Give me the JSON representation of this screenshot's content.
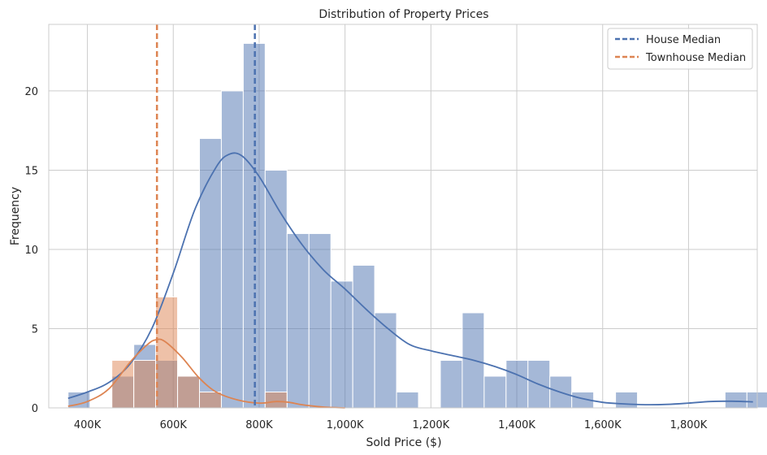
{
  "chart_data": {
    "type": "histogram",
    "title": "Distribution of Property Prices",
    "xlabel": "Sold Price ($)",
    "ylabel": "Frequency",
    "xlim": [
      310000,
      1960000
    ],
    "ylim": [
      0,
      24.2
    ],
    "xticks": [
      400000,
      600000,
      800000,
      1000000,
      1200000,
      1400000,
      1600000,
      1800000
    ],
    "xtick_labels": [
      "400K",
      "600K",
      "800K",
      "1,000K",
      "1,200K",
      "1,400K",
      "1,600K",
      "1,800K"
    ],
    "yticks": [
      0,
      5,
      10,
      15,
      20
    ],
    "ytick_labels": [
      "0",
      "5",
      "10",
      "15",
      "20"
    ],
    "grid": true,
    "legend_position": "top-right",
    "series": [
      {
        "name": "House",
        "color": "#4c72b0",
        "bins": [
          {
            "x0": 355000,
            "x1": 406000,
            "count": 1
          },
          {
            "x0": 457000,
            "x1": 508000,
            "count": 2
          },
          {
            "x0": 508000,
            "x1": 559000,
            "count": 4
          },
          {
            "x0": 559000,
            "x1": 610000,
            "count": 3
          },
          {
            "x0": 610000,
            "x1": 661000,
            "count": 2
          },
          {
            "x0": 661000,
            "x1": 712000,
            "count": 17
          },
          {
            "x0": 712000,
            "x1": 763000,
            "count": 20
          },
          {
            "x0": 763000,
            "x1": 814000,
            "count": 23
          },
          {
            "x0": 814000,
            "x1": 865000,
            "count": 15
          },
          {
            "x0": 865000,
            "x1": 916000,
            "count": 11
          },
          {
            "x0": 916000,
            "x1": 967000,
            "count": 11
          },
          {
            "x0": 967000,
            "x1": 1018000,
            "count": 8
          },
          {
            "x0": 1018000,
            "x1": 1069000,
            "count": 9
          },
          {
            "x0": 1069000,
            "x1": 1120000,
            "count": 6
          },
          {
            "x0": 1120000,
            "x1": 1171000,
            "count": 1
          },
          {
            "x0": 1222000,
            "x1": 1273000,
            "count": 3
          },
          {
            "x0": 1273000,
            "x1": 1324000,
            "count": 6
          },
          {
            "x0": 1324000,
            "x1": 1375000,
            "count": 2
          },
          {
            "x0": 1375000,
            "x1": 1426000,
            "count": 3
          },
          {
            "x0": 1426000,
            "x1": 1477000,
            "count": 3
          },
          {
            "x0": 1477000,
            "x1": 1528000,
            "count": 2
          },
          {
            "x0": 1528000,
            "x1": 1579000,
            "count": 1
          },
          {
            "x0": 1630000,
            "x1": 1681000,
            "count": 1
          },
          {
            "x0": 1885000,
            "x1": 1936000,
            "count": 1
          },
          {
            "x0": 1936000,
            "x1": 1987000,
            "count": 1
          }
        ],
        "median": 790000,
        "median_label": "House Median",
        "kde": [
          [
            355000,
            0.6
          ],
          [
            400000,
            1.0
          ],
          [
            450000,
            1.6
          ],
          [
            500000,
            2.8
          ],
          [
            550000,
            5.0
          ],
          [
            600000,
            8.5
          ],
          [
            650000,
            12.5
          ],
          [
            700000,
            15.2
          ],
          [
            730000,
            16.0
          ],
          [
            760000,
            15.9
          ],
          [
            800000,
            14.6
          ],
          [
            850000,
            12.3
          ],
          [
            900000,
            10.3
          ],
          [
            950000,
            8.7
          ],
          [
            1000000,
            7.5
          ],
          [
            1050000,
            6.2
          ],
          [
            1100000,
            5.0
          ],
          [
            1150000,
            4.0
          ],
          [
            1200000,
            3.6
          ],
          [
            1250000,
            3.3
          ],
          [
            1300000,
            3.0
          ],
          [
            1350000,
            2.6
          ],
          [
            1400000,
            2.1
          ],
          [
            1450000,
            1.5
          ],
          [
            1500000,
            1.0
          ],
          [
            1550000,
            0.6
          ],
          [
            1600000,
            0.35
          ],
          [
            1650000,
            0.25
          ],
          [
            1700000,
            0.2
          ],
          [
            1750000,
            0.22
          ],
          [
            1800000,
            0.3
          ],
          [
            1850000,
            0.4
          ],
          [
            1900000,
            0.42
          ],
          [
            1950000,
            0.38
          ]
        ]
      },
      {
        "name": "Townhouse",
        "color": "#dd8452",
        "bins": [
          {
            "x0": 457000,
            "x1": 508000,
            "count": 3
          },
          {
            "x0": 508000,
            "x1": 559000,
            "count": 3
          },
          {
            "x0": 559000,
            "x1": 610000,
            "count": 7
          },
          {
            "x0": 610000,
            "x1": 661000,
            "count": 2
          },
          {
            "x0": 661000,
            "x1": 712000,
            "count": 1
          },
          {
            "x0": 814000,
            "x1": 865000,
            "count": 1
          }
        ],
        "median": 562000,
        "median_label": "Townhouse Median",
        "kde": [
          [
            355000,
            0.1
          ],
          [
            400000,
            0.4
          ],
          [
            450000,
            1.2
          ],
          [
            500000,
            2.9
          ],
          [
            540000,
            4.0
          ],
          [
            560000,
            4.3
          ],
          [
            580000,
            4.2
          ],
          [
            620000,
            3.2
          ],
          [
            660000,
            1.9
          ],
          [
            700000,
            1.0
          ],
          [
            750000,
            0.5
          ],
          [
            800000,
            0.3
          ],
          [
            840000,
            0.4
          ],
          [
            870000,
            0.35
          ],
          [
            900000,
            0.2
          ],
          [
            950000,
            0.05
          ],
          [
            1000000,
            0.0
          ]
        ]
      }
    ]
  }
}
